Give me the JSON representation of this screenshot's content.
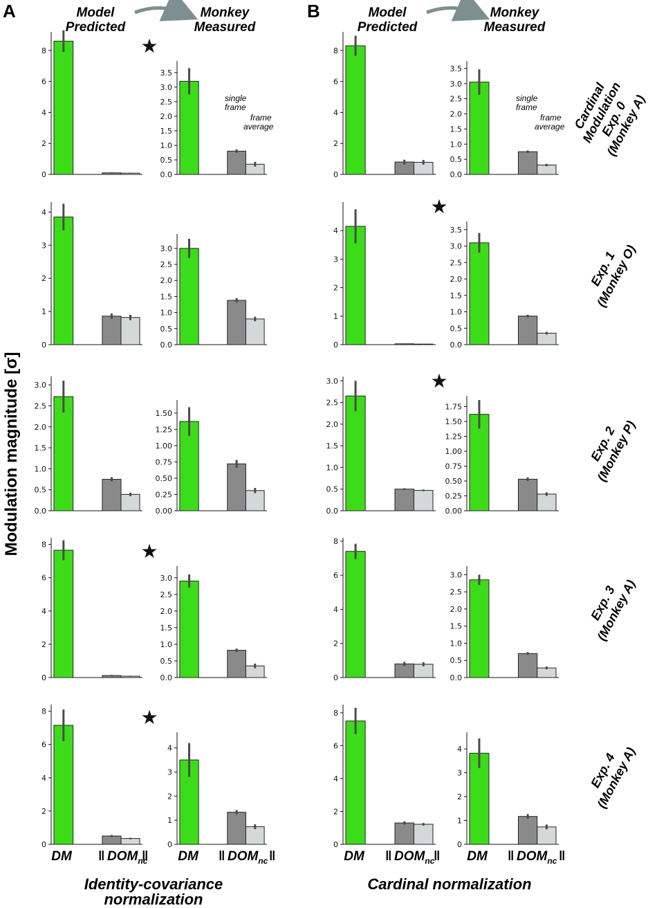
{
  "panel_letters": {
    "A": "A",
    "B": "B"
  },
  "column_headers": {
    "predicted": [
      "Model",
      "Predicted"
    ],
    "measured": [
      "Monkey",
      "Measured"
    ]
  },
  "y_axis_label": "Modulation magnitude [σ]",
  "x_category_labels": {
    "dm": "DM",
    "dom_main": "DOM",
    "dom_sub": "nc",
    "norm_bar": "‖"
  },
  "footer_labels": {
    "identity": [
      "Identity-covariance",
      "normalization"
    ],
    "cardinal": [
      "Cardinal normalization"
    ]
  },
  "legend_annotations": {
    "single": [
      "single",
      "frame"
    ],
    "average": [
      "frame",
      "average"
    ]
  },
  "row_labels": [
    [
      "Cardinal",
      "Modulation",
      "Exp. 0",
      "(Monkey A)"
    ],
    [
      "Exp. 1",
      "(Monkey O)"
    ],
    [
      "Exp. 2",
      "(Monkey P)"
    ],
    [
      "Exp. 3",
      "(Monkey A)"
    ],
    [
      "Exp. 4",
      "(Monkey A)"
    ]
  ],
  "star_glyph": "★",
  "colors": {
    "dm": "#3ddc1a",
    "single_frame": "#8a8a8a",
    "frame_average": "#d4d8d8",
    "error_bar": "#4a4a4a",
    "arrow": "#7e8f91"
  },
  "chart_data": [
    {
      "type": "bar",
      "column": "A",
      "row": 0,
      "kind": "model_predicted",
      "categories": [
        "DM",
        "DOM_nc single frame",
        "DOM_nc frame average"
      ],
      "values": [
        8.6,
        0.1,
        0.08
      ],
      "errors": [
        0.7,
        0.04,
        0.03
      ],
      "ylim": [
        0,
        9.2
      ],
      "yticks": [
        "0",
        "2",
        "4",
        "6",
        "8"
      ],
      "star": false
    },
    {
      "type": "bar",
      "column": "A",
      "row": 0,
      "kind": "monkey_measured",
      "categories": [
        "DM",
        "DOM_nc single frame",
        "DOM_nc frame average"
      ],
      "values": [
        3.2,
        0.8,
        0.35
      ],
      "errors": [
        0.45,
        0.06,
        0.08
      ],
      "ylim": [
        0,
        3.9
      ],
      "yticks": [
        "0.0",
        "0.5",
        "1.0",
        "1.5",
        "2.0",
        "2.5",
        "3.0",
        "3.5"
      ],
      "star": true
    },
    {
      "type": "bar",
      "column": "A",
      "row": 1,
      "kind": "model_predicted",
      "categories": [
        "DM",
        "DOM_nc single frame",
        "DOM_nc frame average"
      ],
      "values": [
        3.85,
        0.86,
        0.82
      ],
      "errors": [
        0.4,
        0.08,
        0.08
      ],
      "ylim": [
        0,
        4.3
      ],
      "yticks": [
        "0",
        "1",
        "2",
        "3",
        "4"
      ],
      "star": false
    },
    {
      "type": "bar",
      "column": "A",
      "row": 1,
      "kind": "monkey_measured",
      "categories": [
        "DM",
        "DOM_nc single frame",
        "DOM_nc frame average"
      ],
      "values": [
        3.0,
        1.38,
        0.8
      ],
      "errors": [
        0.3,
        0.07,
        0.07
      ],
      "ylim": [
        0,
        3.45
      ],
      "yticks": [
        "0.0",
        "0.5",
        "1.0",
        "1.5",
        "2.0",
        "2.5",
        "3.0"
      ],
      "star": false
    },
    {
      "type": "bar",
      "column": "A",
      "row": 2,
      "kind": "model_predicted",
      "categories": [
        "DM",
        "DOM_nc single frame",
        "DOM_nc frame average"
      ],
      "values": [
        2.72,
        0.75,
        0.39
      ],
      "errors": [
        0.38,
        0.05,
        0.04
      ],
      "ylim": [
        0,
        3.2
      ],
      "yticks": [
        "0.0",
        "0.5",
        "1.0",
        "1.5",
        "2.0",
        "2.5",
        "3.0"
      ],
      "star": false
    },
    {
      "type": "bar",
      "column": "A",
      "row": 2,
      "kind": "monkey_measured",
      "categories": [
        "DM",
        "DOM_nc single frame",
        "DOM_nc frame average"
      ],
      "values": [
        1.37,
        0.72,
        0.31
      ],
      "errors": [
        0.22,
        0.06,
        0.04
      ],
      "ylim": [
        0,
        1.7
      ],
      "yticks": [
        "0.00",
        "0.25",
        "0.50",
        "0.75",
        "1.00",
        "1.25",
        "1.50"
      ],
      "star": false
    },
    {
      "type": "bar",
      "column": "A",
      "row": 3,
      "kind": "model_predicted",
      "categories": [
        "DM",
        "DOM_nc single frame",
        "DOM_nc frame average"
      ],
      "values": [
        7.65,
        0.12,
        0.08
      ],
      "errors": [
        0.6,
        0.04,
        0.03
      ],
      "ylim": [
        0,
        8.4
      ],
      "yticks": [
        "0",
        "2",
        "4",
        "6",
        "8"
      ],
      "star": false
    },
    {
      "type": "bar",
      "column": "A",
      "row": 3,
      "kind": "monkey_measured",
      "categories": [
        "DM",
        "DOM_nc single frame",
        "DOM_nc frame average"
      ],
      "values": [
        2.9,
        0.82,
        0.35
      ],
      "errors": [
        0.2,
        0.05,
        0.07
      ],
      "ylim": [
        0,
        3.35
      ],
      "yticks": [
        "0.0",
        "0.5",
        "1.0",
        "1.5",
        "2.0",
        "2.5",
        "3.0"
      ],
      "star": true
    },
    {
      "type": "bar",
      "column": "A",
      "row": 4,
      "kind": "model_predicted",
      "categories": [
        "DM",
        "DOM_nc single frame",
        "DOM_nc frame average"
      ],
      "values": [
        7.15,
        0.5,
        0.35
      ],
      "errors": [
        0.95,
        0.06,
        0.05
      ],
      "ylim": [
        0,
        8.4
      ],
      "yticks": [
        "0",
        "2",
        "4",
        "6",
        "8"
      ],
      "star": false
    },
    {
      "type": "bar",
      "column": "A",
      "row": 4,
      "kind": "monkey_measured",
      "categories": [
        "DM",
        "DOM_nc single frame",
        "DOM_nc frame average"
      ],
      "values": [
        3.5,
        1.33,
        0.73
      ],
      "errors": [
        0.7,
        0.09,
        0.1
      ],
      "ylim": [
        0,
        4.65
      ],
      "yticks": [
        "0",
        "1",
        "2",
        "3",
        "4"
      ],
      "star": true
    },
    {
      "type": "bar",
      "column": "B",
      "row": 0,
      "kind": "model_predicted",
      "categories": [
        "DM",
        "DOM_nc single frame",
        "DOM_nc frame average"
      ],
      "values": [
        8.3,
        0.8,
        0.78
      ],
      "errors": [
        0.65,
        0.15,
        0.15
      ],
      "ylim": [
        0,
        9.2
      ],
      "yticks": [
        "0",
        "2",
        "4",
        "6",
        "8"
      ],
      "star": false
    },
    {
      "type": "bar",
      "column": "B",
      "row": 0,
      "kind": "monkey_measured",
      "categories": [
        "DM",
        "DOM_nc single frame",
        "DOM_nc frame average"
      ],
      "values": [
        3.05,
        0.75,
        0.31
      ],
      "errors": [
        0.42,
        0.04,
        0.04
      ],
      "ylim": [
        0,
        3.75
      ],
      "yticks": [
        "0.0",
        "0.5",
        "1.0",
        "1.5",
        "2.0",
        "2.5",
        "3.0",
        "3.5"
      ],
      "star": false
    },
    {
      "type": "bar",
      "column": "B",
      "row": 1,
      "kind": "model_predicted",
      "categories": [
        "DM",
        "DOM_nc single frame",
        "DOM_nc frame average"
      ],
      "values": [
        4.15,
        0.03,
        0.02
      ],
      "errors": [
        0.6,
        0.01,
        0.01
      ],
      "ylim": [
        0,
        5.0
      ],
      "yticks": [
        "0",
        "1",
        "2",
        "3",
        "4"
      ],
      "star": false
    },
    {
      "type": "bar",
      "column": "B",
      "row": 1,
      "kind": "monkey_measured",
      "categories": [
        "DM",
        "DOM_nc single frame",
        "DOM_nc frame average"
      ],
      "values": [
        3.1,
        0.87,
        0.35
      ],
      "errors": [
        0.3,
        0.04,
        0.04
      ],
      "ylim": [
        0,
        3.75
      ],
      "yticks": [
        "0.0",
        "0.5",
        "1.0",
        "1.5",
        "2.0",
        "2.5",
        "3.0",
        "3.5"
      ],
      "star": true
    },
    {
      "type": "bar",
      "column": "B",
      "row": 2,
      "kind": "model_predicted",
      "categories": [
        "DM",
        "DOM_nc single frame",
        "DOM_nc frame average"
      ],
      "values": [
        2.65,
        0.5,
        0.47
      ],
      "errors": [
        0.35,
        0.02,
        0.02
      ],
      "ylim": [
        0,
        3.1
      ],
      "yticks": [
        "0.0",
        "0.5",
        "1.0",
        "1.5",
        "2.0",
        "2.5",
        "3.0"
      ],
      "star": false
    },
    {
      "type": "bar",
      "column": "B",
      "row": 2,
      "kind": "monkey_measured",
      "categories": [
        "DM",
        "DOM_nc single frame",
        "DOM_nc frame average"
      ],
      "values": [
        1.62,
        0.53,
        0.28
      ],
      "errors": [
        0.24,
        0.03,
        0.03
      ],
      "ylim": [
        0,
        1.93
      ],
      "yticks": [
        "0.00",
        "0.25",
        "0.50",
        "0.75",
        "1.00",
        "1.25",
        "1.50",
        "1.75"
      ],
      "star": true
    },
    {
      "type": "bar",
      "column": "B",
      "row": 3,
      "kind": "model_predicted",
      "categories": [
        "DM",
        "DOM_nc single frame",
        "DOM_nc frame average"
      ],
      "values": [
        7.4,
        0.8,
        0.78
      ],
      "errors": [
        0.45,
        0.12,
        0.12
      ],
      "ylim": [
        0,
        8.2
      ],
      "yticks": [
        "0",
        "2",
        "4",
        "6",
        "8"
      ],
      "star": false
    },
    {
      "type": "bar",
      "column": "B",
      "row": 3,
      "kind": "monkey_measured",
      "categories": [
        "DM",
        "DOM_nc single frame",
        "DOM_nc frame average"
      ],
      "values": [
        2.85,
        0.7,
        0.28
      ],
      "errors": [
        0.15,
        0.04,
        0.04
      ],
      "ylim": [
        0,
        3.25
      ],
      "yticks": [
        "0.0",
        "0.5",
        "1.0",
        "1.5",
        "2.0",
        "2.5",
        "3.0"
      ],
      "star": false
    },
    {
      "type": "bar",
      "column": "B",
      "row": 4,
      "kind": "model_predicted",
      "categories": [
        "DM",
        "DOM_nc single frame",
        "DOM_nc frame average"
      ],
      "values": [
        7.5,
        1.3,
        1.22
      ],
      "errors": [
        0.8,
        0.1,
        0.08
      ],
      "ylim": [
        0,
        8.5
      ],
      "yticks": [
        "0",
        "2",
        "4",
        "6",
        "8"
      ],
      "star": false
    },
    {
      "type": "bar",
      "column": "B",
      "row": 4,
      "kind": "monkey_measured",
      "categories": [
        "DM",
        "DOM_nc single frame",
        "DOM_nc frame average"
      ],
      "values": [
        3.82,
        1.17,
        0.73
      ],
      "errors": [
        0.62,
        0.1,
        0.1
      ],
      "ylim": [
        0,
        4.7
      ],
      "yticks": [
        "0",
        "1",
        "2",
        "3",
        "4"
      ],
      "star": false
    }
  ]
}
